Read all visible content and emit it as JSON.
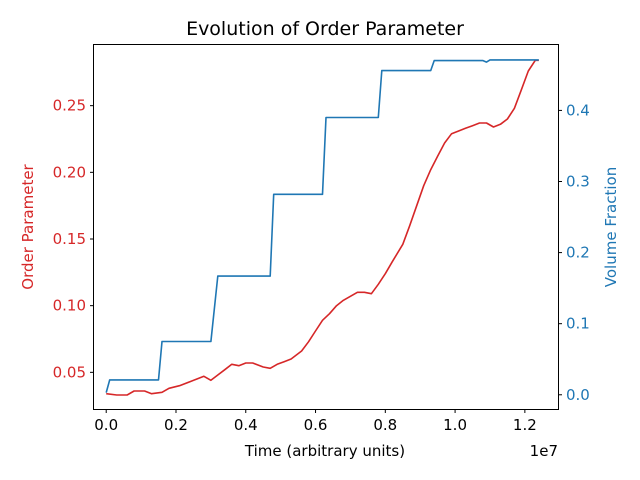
{
  "chart_data": {
    "type": "line",
    "title": "Evolution of Order Parameter",
    "xlabel": "Time (arbitrary units)",
    "x_offset_label": "1e7",
    "x_scale": 10000000,
    "xlim": [
      -350000,
      12950000
    ],
    "x_ticks": [
      0,
      2000000,
      4000000,
      6000000,
      8000000,
      10000000,
      12000000
    ],
    "x_tick_labels": [
      "0.0",
      "0.2",
      "0.4",
      "0.6",
      "0.8",
      "1.0",
      "1.2"
    ],
    "y_left": {
      "label": "Order Parameter",
      "color": "#d62728",
      "lim": [
        0.0225,
        0.2955
      ],
      "ticks": [
        0.05,
        0.1,
        0.15,
        0.2,
        0.25
      ],
      "tick_labels": [
        "0.05",
        "0.10",
        "0.15",
        "0.20",
        "0.25"
      ]
    },
    "y_right": {
      "label": "Volume Fraction",
      "color": "#1f77b4",
      "lim": [
        -0.02,
        0.492
      ],
      "ticks": [
        0.0,
        0.1,
        0.2,
        0.3,
        0.4
      ],
      "tick_labels": [
        "0.0",
        "0.1",
        "0.2",
        "0.3",
        "0.4"
      ]
    },
    "series": [
      {
        "axis": "left",
        "color": "#d62728",
        "x": [
          0,
          300000,
          600000,
          800000,
          1100000,
          1300000,
          1600000,
          1800000,
          2100000,
          2400000,
          2600000,
          2800000,
          3000000,
          3200000,
          3400000,
          3600000,
          3800000,
          4000000,
          4200000,
          4500000,
          4700000,
          4900000,
          5100000,
          5300000,
          5600000,
          5800000,
          6000000,
          6200000,
          6400000,
          6600000,
          6800000,
          7000000,
          7200000,
          7400000,
          7600000,
          7800000,
          8000000,
          8200000,
          8500000,
          8700000,
          8900000,
          9100000,
          9300000,
          9500000,
          9700000,
          9900000,
          10100000,
          10300000,
          10500000,
          10700000,
          10900000,
          11100000,
          11300000,
          11500000,
          11700000,
          11900000,
          12100000,
          12300000,
          12400000
        ],
        "values": [
          0.034,
          0.033,
          0.033,
          0.036,
          0.036,
          0.034,
          0.035,
          0.038,
          0.04,
          0.043,
          0.045,
          0.047,
          0.044,
          0.048,
          0.052,
          0.056,
          0.055,
          0.057,
          0.057,
          0.054,
          0.053,
          0.056,
          0.058,
          0.06,
          0.066,
          0.073,
          0.081,
          0.089,
          0.094,
          0.1,
          0.104,
          0.107,
          0.11,
          0.11,
          0.109,
          0.116,
          0.124,
          0.133,
          0.146,
          0.16,
          0.175,
          0.19,
          0.202,
          0.212,
          0.222,
          0.229,
          0.231,
          0.233,
          0.235,
          0.237,
          0.237,
          0.234,
          0.236,
          0.24,
          0.248,
          0.262,
          0.276,
          0.284,
          0.284
        ]
      },
      {
        "axis": "right",
        "color": "#1f77b4",
        "step": true,
        "x": [
          0,
          100000,
          1500000,
          1600000,
          3000000,
          3200000,
          4700000,
          4800000,
          6200000,
          6300000,
          7800000,
          7900000,
          9300000,
          9400000,
          10800000,
          10900000,
          11000000,
          12400000
        ],
        "values": [
          0.003,
          0.021,
          0.021,
          0.075,
          0.075,
          0.167,
          0.167,
          0.282,
          0.282,
          0.39,
          0.39,
          0.456,
          0.456,
          0.47,
          0.47,
          0.468,
          0.471,
          0.471
        ]
      }
    ]
  }
}
